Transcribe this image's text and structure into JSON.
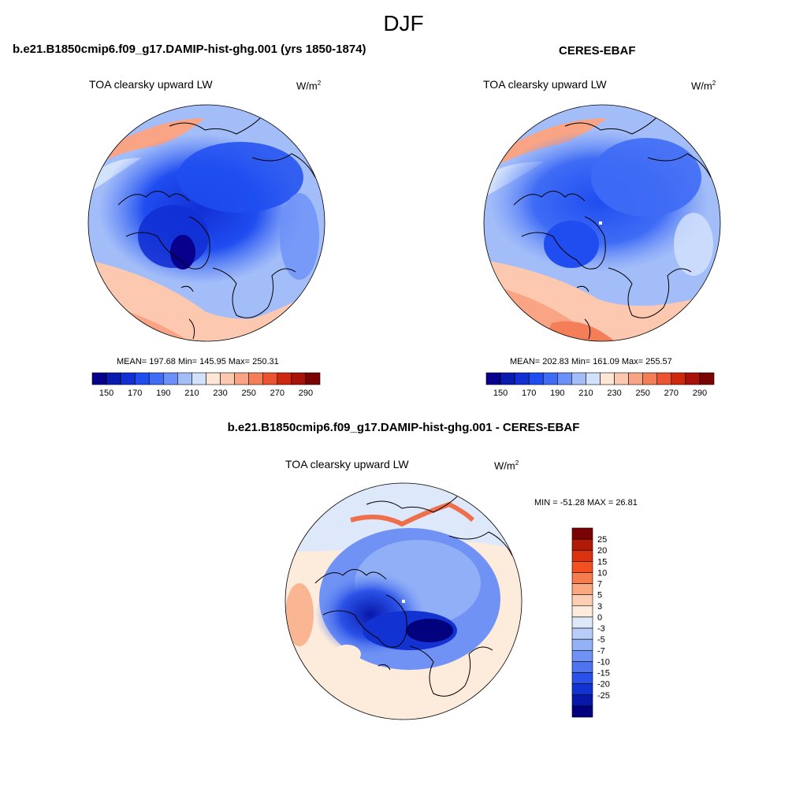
{
  "figure": {
    "season_title": "DJF"
  },
  "panels": {
    "model": {
      "title": "b.e21.B1850cmip6.f09_g17.DAMIP-hist-ghg.001 (yrs 1850-1874)",
      "variable": "TOA clearsky upward LW",
      "units": "W/m",
      "units_sup": "2",
      "stats": "MEAN= 197.68  Min= 145.95  Max= 250.31"
    },
    "obs": {
      "title": "CERES-EBAF",
      "variable": "TOA clearsky upward LW",
      "units": "W/m",
      "units_sup": "2",
      "stats": "MEAN= 202.83  Min= 161.09  Max= 255.57"
    },
    "diff": {
      "title": "b.e21.B1850cmip6.f09_g17.DAMIP-hist-ghg.001 - CERES-EBAF",
      "variable": "TOA clearsky upward LW",
      "units": "W/m",
      "units_sup": "2",
      "stats": "MIN = -51.28 MAX =  26.81"
    }
  },
  "chart_data": [
    {
      "type": "heatmap",
      "projection": "north polar stereographic",
      "title": "b.e21.B1850cmip6.f09_g17.DAMIP-hist-ghg.001 (yrs 1850-1874)",
      "variable": "TOA clearsky upward LW",
      "units": "W/m2",
      "mean": 197.68,
      "min": 145.95,
      "max": 250.31,
      "colorbar_tick_labels": [
        "150",
        "170",
        "190",
        "210",
        "230",
        "250",
        "270",
        "290"
      ],
      "colorbar_colors": [
        "#08008c",
        "#0a1bb0",
        "#1230d4",
        "#1f4df0",
        "#3f6cf5",
        "#6b90f7",
        "#a3bdf9",
        "#d3e2fb",
        "#fde6d6",
        "#fcc8b0",
        "#f9a585",
        "#f47e58",
        "#eb5331",
        "#d0280f",
        "#a81208",
        "#7a0404"
      ]
    },
    {
      "type": "heatmap",
      "projection": "north polar stereographic",
      "title": "CERES-EBAF",
      "variable": "TOA clearsky upward LW",
      "units": "W/m2",
      "mean": 202.83,
      "min": 161.09,
      "max": 255.57,
      "colorbar_tick_labels": [
        "150",
        "170",
        "190",
        "210",
        "230",
        "250",
        "270",
        "290"
      ],
      "colorbar_colors": [
        "#08008c",
        "#0a1bb0",
        "#1230d4",
        "#1f4df0",
        "#3f6cf5",
        "#6b90f7",
        "#a3bdf9",
        "#d3e2fb",
        "#fde6d6",
        "#fcc8b0",
        "#f9a585",
        "#f47e58",
        "#eb5331",
        "#d0280f",
        "#a81208",
        "#7a0404"
      ]
    },
    {
      "type": "heatmap",
      "projection": "north polar stereographic",
      "title": "b.e21.B1850cmip6.f09_g17.DAMIP-hist-ghg.001 - CERES-EBAF",
      "variable": "TOA clearsky upward LW",
      "units": "W/m2",
      "min": -51.28,
      "max": 26.81,
      "colorbar_tick_labels": [
        "25",
        "20",
        "15",
        "10",
        "7",
        "5",
        "3",
        "0",
        "-3",
        "-5",
        "-7",
        "-10",
        "-15",
        "-20",
        "-25"
      ],
      "colorbar_colors": [
        "#7a0404",
        "#b01a06",
        "#d8320e",
        "#f2501e",
        "#f67c4e",
        "#f9a880",
        "#fccfb4",
        "#fdebdc",
        "#dde8fa",
        "#b8cdf8",
        "#93b2f6",
        "#6f92f4",
        "#4e74f0",
        "#2b52e8",
        "#1232d2",
        "#0818aa",
        "#03027e"
      ]
    }
  ]
}
